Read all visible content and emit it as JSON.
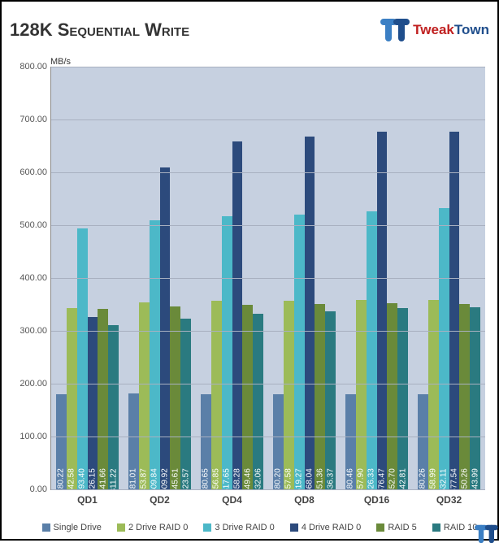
{
  "title": "128K Sequential Write",
  "title_fontsize": 22,
  "brand": {
    "tweak": "Tweak",
    "town": "Town"
  },
  "ylabel": "MB/s",
  "ylim": [
    0,
    800
  ],
  "ytick_step": 100,
  "background_color": "#c6d0e0",
  "grid_color": "#a8b0c0",
  "categories": [
    "QD1",
    "QD2",
    "QD4",
    "QD8",
    "QD16",
    "QD32"
  ],
  "series": [
    {
      "name": "Single Drive",
      "color": "#5a7fa8"
    },
    {
      "name": "2 Drive RAID 0",
      "color": "#9cbb58"
    },
    {
      "name": "3 Drive RAID 0",
      "color": "#4cb8c8"
    },
    {
      "name": "4 Drive RAID 0",
      "color": "#2c4a7c"
    },
    {
      "name": "RAID 5",
      "color": "#6a8a3a"
    },
    {
      "name": "RAID 10",
      "color": "#2a7a80"
    }
  ],
  "data": [
    [
      180.22,
      342.58,
      493.4,
      326.15,
      341.66,
      311.22
    ],
    [
      181.01,
      353.87,
      509.84,
      609.92,
      345.61,
      323.57
    ],
    [
      180.65,
      356.85,
      517.65,
      658.28,
      349.46,
      332.06
    ],
    [
      180.2,
      357.58,
      519.27,
      668.04,
      351.36,
      336.37
    ],
    [
      180.46,
      357.9,
      526.33,
      676.47,
      352.7,
      342.81
    ],
    [
      180.26,
      358.99,
      532.11,
      677.54,
      350.26,
      343.99
    ]
  ]
}
